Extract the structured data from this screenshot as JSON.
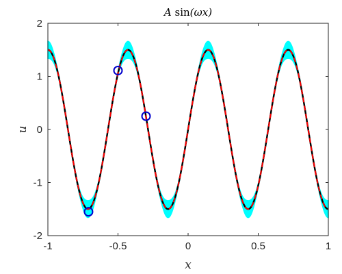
{
  "chart_data": {
    "type": "line",
    "title": "A sin(ωx)",
    "xlabel": "x",
    "ylabel": "u",
    "xlim": [
      -1,
      1
    ],
    "ylim": [
      -2,
      2
    ],
    "xticks": [
      -1,
      -0.5,
      0,
      0.5,
      1
    ],
    "xtick_labels": [
      "-1",
      "-0.5",
      "0",
      "0.5",
      "1"
    ],
    "yticks": [
      -2,
      -1,
      0,
      1,
      2
    ],
    "ytick_labels": [
      "-2",
      "-1",
      "0",
      "1",
      "2"
    ],
    "grid": false,
    "function": {
      "A": 1.5,
      "omega": 11.0,
      "phase": 0.0
    },
    "series": [
      {
        "style": "cyan uncertainty band",
        "color": "#00ffff",
        "band_halfwidth": [
          0.02,
          0.16
        ]
      },
      {
        "style": "solid",
        "color": "#000000",
        "A": 1.5
      },
      {
        "style": "dashed",
        "color": "#ff0000",
        "A": 1.5
      }
    ],
    "points": {
      "color": "#0000cc",
      "marker": "circle",
      "x": [
        -0.71,
        -0.5,
        -0.3
      ],
      "y": [
        -1.55,
        1.11,
        0.25
      ]
    }
  }
}
